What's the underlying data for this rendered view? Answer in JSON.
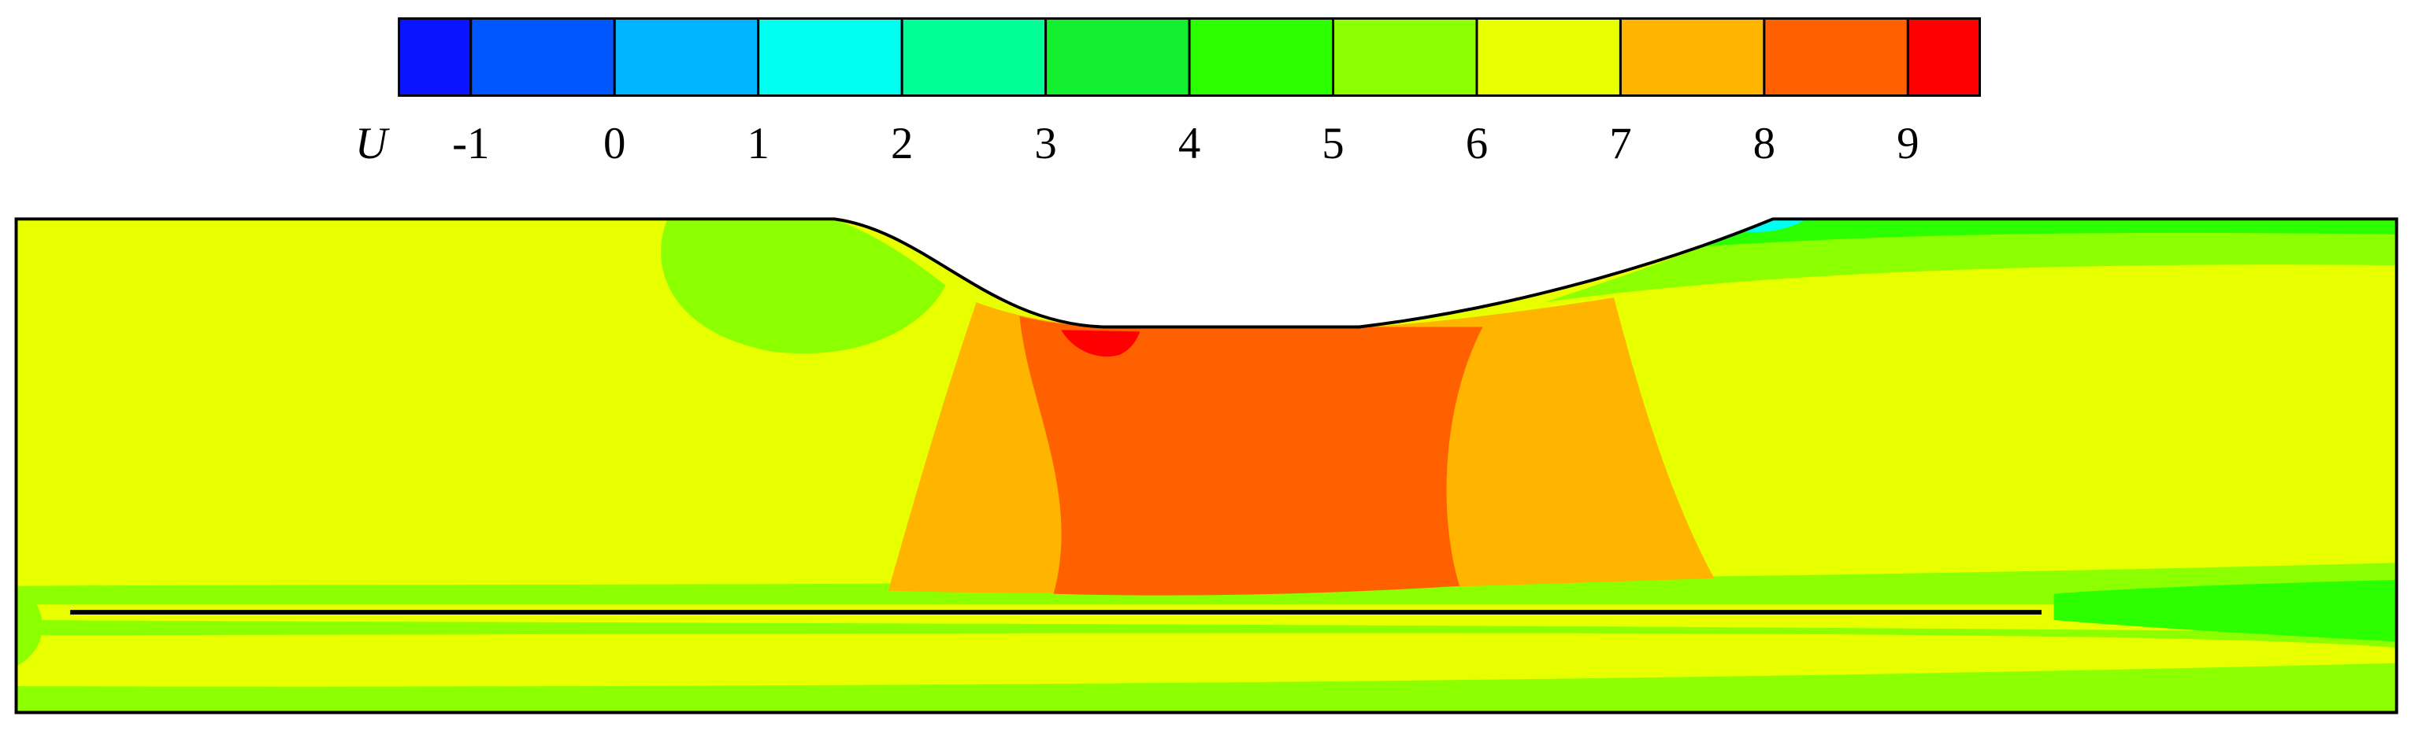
{
  "chart_data": {
    "type": "contour",
    "colorbar_label": "U",
    "clim": [
      -1.5,
      9.5
    ],
    "cticks": [
      -1,
      0,
      1,
      2,
      3,
      4,
      5,
      6,
      7,
      8,
      9
    ],
    "colors": [
      "#0a14ff",
      "#0056ff",
      "#00b4ff",
      "#00fff0",
      "#00ff96",
      "#12f030",
      "#2cff00",
      "#8cff00",
      "#e8ff00",
      "#ffb400",
      "#ff6000",
      "#ff0000"
    ]
  }
}
